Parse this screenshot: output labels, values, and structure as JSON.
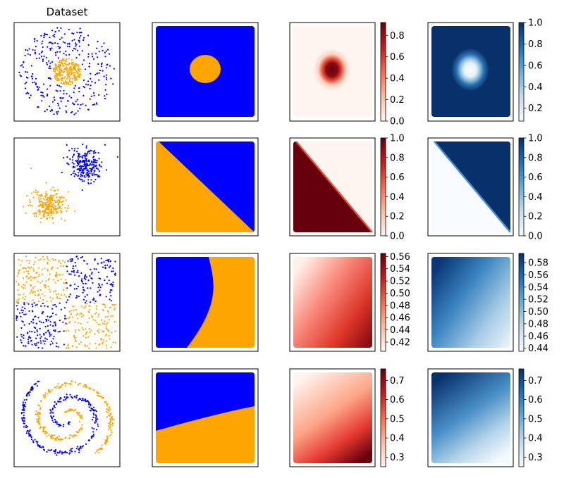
{
  "title": "Dataset",
  "colors": {
    "class_a": "#0000ff",
    "class_b": "#ffa500",
    "reds_low": "#fff5f0",
    "reds_high": "#67000d",
    "blues_low": "#f7fbff",
    "blues_high": "#08306b"
  },
  "chart_data": [
    {
      "row": 1,
      "dataset": "circles",
      "panels": [
        {
          "type": "scatter",
          "title": "Dataset",
          "series": [
            {
              "color": "blue",
              "description": "outer ring, radius ~0.5-1.0"
            },
            {
              "color": "orange",
              "description": "inner disk, radius ~0.25"
            }
          ]
        },
        {
          "type": "heatmap",
          "kind": "predicted class",
          "colors": [
            "blue",
            "orange"
          ]
        },
        {
          "type": "heatmap",
          "kind": "probability",
          "colormap": "Reds",
          "colorbar_ticks": [
            "0.0",
            "0.2",
            "0.4",
            "0.6",
            "0.8"
          ],
          "clim": [
            0,
            0.92
          ]
        },
        {
          "type": "heatmap",
          "kind": "probability",
          "colormap": "Blues",
          "colorbar_ticks": [
            "0.2",
            "0.4",
            "0.6",
            "0.8",
            "1.0"
          ],
          "clim": [
            0.08,
            1.0
          ]
        }
      ]
    },
    {
      "row": 2,
      "dataset": "blobs",
      "panels": [
        {
          "type": "scatter",
          "series": [
            {
              "color": "blue",
              "description": "cluster upper-right"
            },
            {
              "color": "orange",
              "description": "cluster lower-left"
            }
          ]
        },
        {
          "type": "heatmap",
          "kind": "predicted class",
          "colors": [
            "blue",
            "orange"
          ]
        },
        {
          "type": "heatmap",
          "kind": "probability",
          "colormap": "Reds",
          "colorbar_ticks": [
            "0.0",
            "0.2",
            "0.4",
            "0.6",
            "0.8",
            "1.0"
          ],
          "clim": [
            0,
            1
          ]
        },
        {
          "type": "heatmap",
          "kind": "probability",
          "colormap": "Blues",
          "colorbar_ticks": [
            "0.0",
            "0.2",
            "0.4",
            "0.6",
            "0.8",
            "1.0"
          ],
          "clim": [
            0,
            1
          ]
        }
      ]
    },
    {
      "row": 3,
      "dataset": "xor",
      "panels": [
        {
          "type": "scatter",
          "series": [
            {
              "color": "blue",
              "description": "top-right and bottom-left quadrants"
            },
            {
              "color": "orange",
              "description": "top-left and bottom-right quadrants"
            }
          ]
        },
        {
          "type": "heatmap",
          "kind": "predicted class",
          "colors": [
            "blue",
            "orange"
          ]
        },
        {
          "type": "heatmap",
          "kind": "probability",
          "colormap": "Reds",
          "colorbar_ticks": [
            "0.42",
            "0.44",
            "0.46",
            "0.48",
            "0.50",
            "0.52",
            "0.54",
            "0.56"
          ],
          "clim": [
            0.405,
            0.565
          ]
        },
        {
          "type": "heatmap",
          "kind": "probability",
          "colormap": "Blues",
          "colorbar_ticks": [
            "0.44",
            "0.46",
            "0.48",
            "0.50",
            "0.52",
            "0.54",
            "0.56",
            "0.58"
          ],
          "clim": [
            0.435,
            0.595
          ]
        }
      ]
    },
    {
      "row": 4,
      "dataset": "spirals",
      "panels": [
        {
          "type": "scatter",
          "series": [
            {
              "color": "blue",
              "description": "spiral arm"
            },
            {
              "color": "orange",
              "description": "spiral arm"
            }
          ]
        },
        {
          "type": "heatmap",
          "kind": "predicted class",
          "colors": [
            "blue",
            "orange"
          ]
        },
        {
          "type": "heatmap",
          "kind": "probability",
          "colormap": "Reds",
          "colorbar_ticks": [
            "0.3",
            "0.4",
            "0.5",
            "0.6",
            "0.7"
          ],
          "clim": [
            0.25,
            0.76
          ]
        },
        {
          "type": "heatmap",
          "kind": "probability",
          "colormap": "Blues",
          "colorbar_ticks": [
            "0.3",
            "0.4",
            "0.5",
            "0.6",
            "0.7"
          ],
          "clim": [
            0.25,
            0.76
          ]
        }
      ]
    }
  ]
}
